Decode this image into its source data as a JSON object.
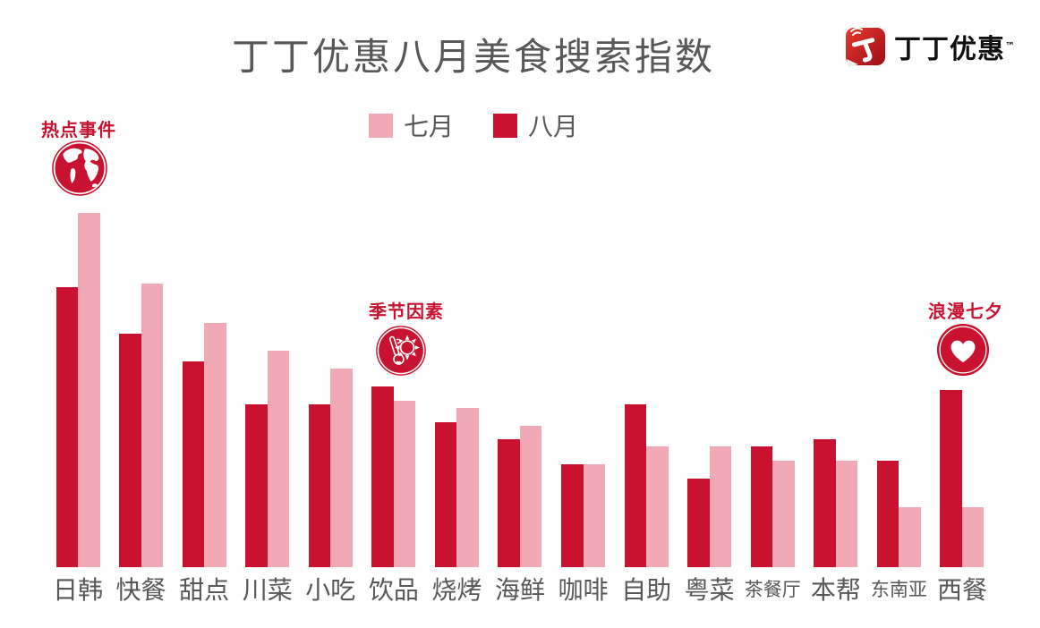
{
  "title": "丁丁优惠八月美食搜索指数",
  "brand": {
    "name": "丁丁优惠",
    "trademark": "™"
  },
  "legend": {
    "july": "七月",
    "august": "八月"
  },
  "annotations": [
    {
      "label": "热点事件",
      "icon": "globe-icon"
    },
    {
      "label": "季节因素",
      "icon": "thermometer-sun-icon"
    },
    {
      "label": "浪漫七夕",
      "icon": "heart-icon"
    }
  ],
  "colors": {
    "august_red": "#c8122f",
    "july_pink": "#f0a9b5",
    "text_gray": "#595757",
    "logo_red_dark": "#9e0b16",
    "logo_red_light": "#e63b2e"
  },
  "chart_data": {
    "type": "bar",
    "title": "丁丁优惠八月美食搜索指数",
    "categories": [
      "日韩",
      "快餐",
      "甜点",
      "川菜",
      "小吃",
      "饮品",
      "烧烤",
      "海鲜",
      "咖啡",
      "自助",
      "粤菜",
      "茶餐厅",
      "本帮",
      "东南亚",
      "西餐"
    ],
    "series": [
      {
        "name": "七月",
        "color_key": "july_pink",
        "values": [
          100,
          80,
          69,
          61,
          56,
          47,
          45,
          40,
          29,
          34,
          34,
          30,
          30,
          17,
          17
        ]
      },
      {
        "name": "八月",
        "color_key": "august_red",
        "values": [
          79,
          66,
          58,
          46,
          46,
          51,
          41,
          36,
          29,
          46,
          25,
          34,
          36,
          30,
          50
        ]
      }
    ],
    "xlabel": "",
    "ylabel": "",
    "ylim": [
      0,
      100
    ],
    "grid": false,
    "axes_shown": false,
    "legend_position": "top-center",
    "bar_order": "八月 (red) drawn left of 七月 (pink) in each pair"
  }
}
